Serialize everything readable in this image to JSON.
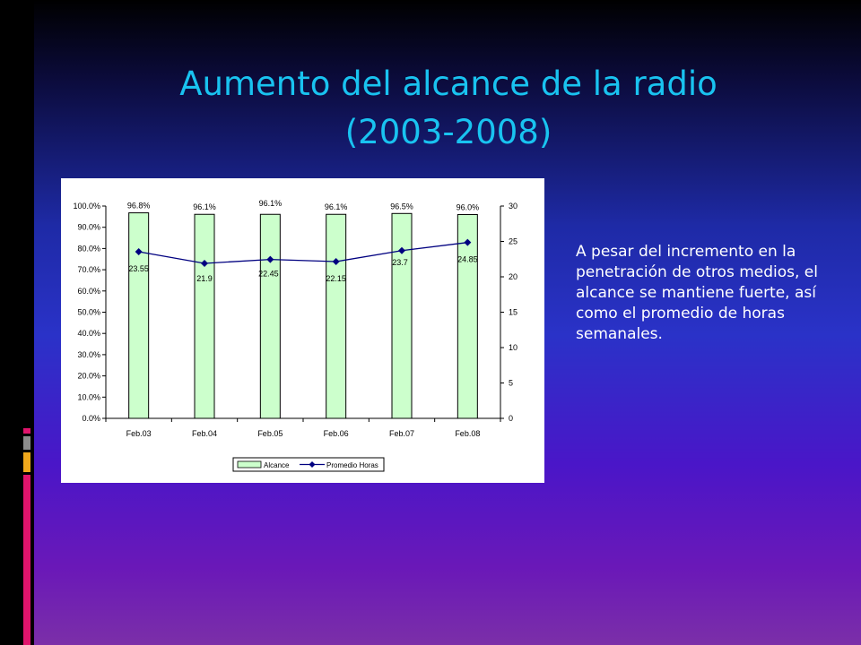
{
  "slide": {
    "title_line1": "Aumento del alcance de la radio",
    "title_line2": "(2003-2008)",
    "side_text": "A pesar del incremento en la penetración de otros medios, el alcance se mantiene fuerte, así como el promedio de horas semanales."
  },
  "colors": {
    "title": "#19c3f0",
    "bar_fill": "#ccffcc",
    "line": "#000080",
    "deco_orange": "#f0a81c",
    "deco_pink": "#e0146c",
    "deco_gray": "#8c8c8c"
  },
  "chart_data": {
    "type": "bar",
    "categories": [
      "Feb.03",
      "Feb.04",
      "Feb.05",
      "Feb.06",
      "Feb.07",
      "Feb.08"
    ],
    "series": [
      {
        "name": "Alcance",
        "type": "bar",
        "axis": "left",
        "values": [
          96.8,
          96.1,
          96.1,
          96.1,
          96.5,
          96.0
        ],
        "labels": [
          "96.8%",
          "96.1%",
          "96.1%",
          "96.1%",
          "96.5%",
          "96.0%"
        ]
      },
      {
        "name": "Promedio Horas",
        "type": "line",
        "axis": "right",
        "values": [
          23.55,
          21.9,
          22.45,
          22.15,
          23.7,
          24.85
        ],
        "labels": [
          "23.55",
          "21.9",
          "22.45",
          "22.15",
          "23.7",
          "24.85"
        ]
      }
    ],
    "y_left": {
      "min": 0,
      "max": 100,
      "ticks": [
        "0.0%",
        "10.0%",
        "20.0%",
        "30.0%",
        "40.0%",
        "50.0%",
        "60.0%",
        "70.0%",
        "80.0%",
        "90.0%",
        "100.0%"
      ]
    },
    "y_right": {
      "min": 0,
      "max": 30,
      "ticks": [
        "0",
        "5",
        "10",
        "15",
        "20",
        "25",
        "30"
      ]
    },
    "legend": {
      "position": "bottom",
      "entries": [
        "Alcance",
        "Promedio Horas"
      ]
    },
    "grid": false
  }
}
